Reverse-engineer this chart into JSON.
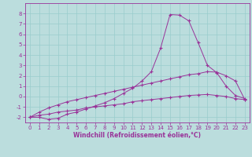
{
  "xlabel": "Windchill (Refroidissement éolien,°C)",
  "x_values": [
    0,
    1,
    2,
    3,
    4,
    5,
    6,
    7,
    8,
    9,
    10,
    11,
    12,
    13,
    14,
    15,
    16,
    17,
    18,
    19,
    20,
    21,
    22,
    23
  ],
  "line1_y": [
    -2.0,
    -2.0,
    -2.2,
    -2.1,
    -1.7,
    -1.5,
    -1.2,
    -0.9,
    -0.6,
    -0.2,
    0.3,
    0.8,
    1.5,
    2.4,
    4.7,
    7.9,
    7.85,
    7.3,
    5.2,
    3.0,
    2.3,
    1.0,
    0.1,
    -0.2
  ],
  "line2_y": [
    -2.0,
    -1.5,
    -1.1,
    -0.8,
    -0.5,
    -0.3,
    -0.1,
    0.1,
    0.3,
    0.5,
    0.7,
    0.9,
    1.1,
    1.3,
    1.5,
    1.7,
    1.9,
    2.1,
    2.2,
    2.4,
    2.35,
    2.0,
    1.5,
    -0.3
  ],
  "line3_y": [
    -2.0,
    -1.8,
    -1.7,
    -1.5,
    -1.4,
    -1.3,
    -1.1,
    -1.0,
    -0.9,
    -0.8,
    -0.7,
    -0.5,
    -0.4,
    -0.3,
    -0.2,
    -0.1,
    0.0,
    0.1,
    0.15,
    0.2,
    0.1,
    0.0,
    -0.2,
    -0.3
  ],
  "line_color": "#993399",
  "bg_color": "#bbdddd",
  "grid_color": "#99cccc",
  "ylim": [
    -2.5,
    9.0
  ],
  "xlim": [
    -0.5,
    23.5
  ],
  "yticks": [
    -2,
    -1,
    0,
    1,
    2,
    3,
    4,
    5,
    6,
    7,
    8
  ],
  "xticks": [
    0,
    1,
    2,
    3,
    4,
    5,
    6,
    7,
    8,
    9,
    10,
    11,
    12,
    13,
    14,
    15,
    16,
    17,
    18,
    19,
    20,
    21,
    22,
    23
  ],
  "tick_fontsize": 5.0,
  "xlabel_fontsize": 5.5
}
